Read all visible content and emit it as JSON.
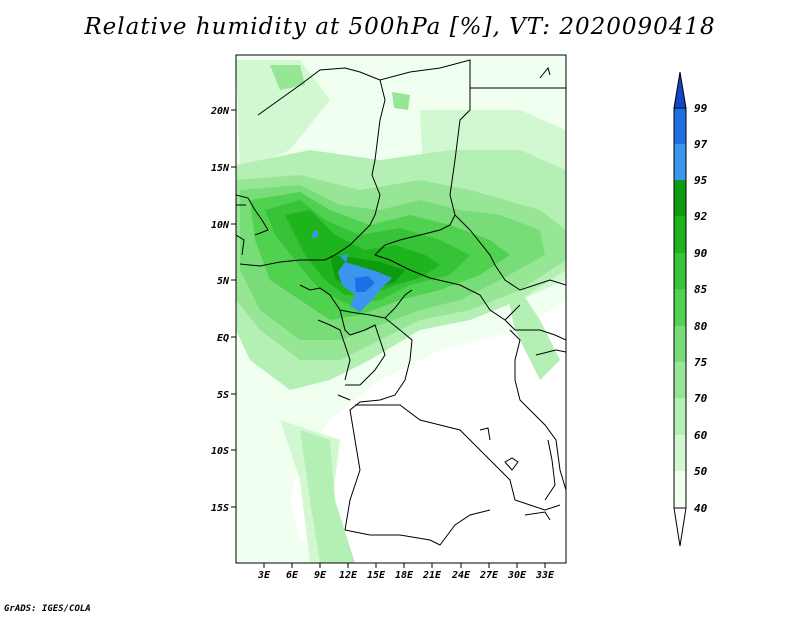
{
  "title": "Relative humidity at 500hPa [%], VT: 2020090418",
  "credit": "GrADS: IGES/COLA",
  "colors": {
    "c40": "#f0fff0",
    "c50": "#d2f8d2",
    "c60": "#b4f0b4",
    "c70": "#96e696",
    "c75": "#78dc78",
    "c80": "#50d250",
    "c85": "#37c337",
    "c90": "#1eb41e",
    "c92": "#0f9b0f",
    "c95": "#3c96f0",
    "c97": "#1e6ee6",
    "c99": "#1446c8",
    "border": "#000000"
  },
  "map": {
    "lat_labels": [
      "20N",
      "15N",
      "10N",
      "5N",
      "EQ",
      "5S",
      "10S",
      "15S"
    ],
    "lon_labels": [
      "3E",
      "6E",
      "9E",
      "12E",
      "15E",
      "18E",
      "21E",
      "24E",
      "27E",
      "30E",
      "33E"
    ]
  },
  "colorbar": {
    "labels": [
      "99",
      "97",
      "95",
      "92",
      "90",
      "85",
      "80",
      "75",
      "70",
      "60",
      "50",
      "40"
    ]
  }
}
